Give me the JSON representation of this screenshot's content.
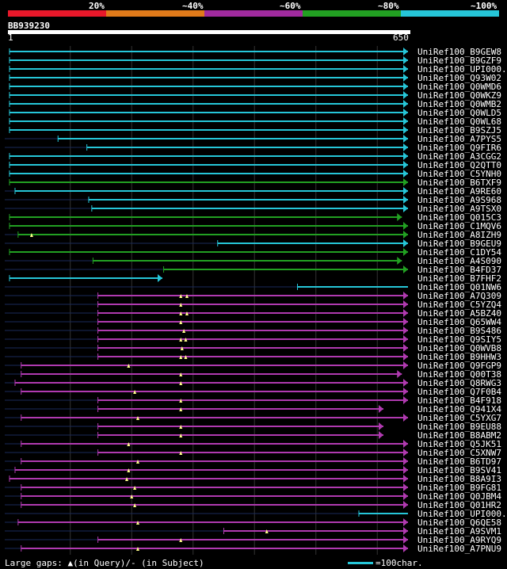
{
  "identity_legend": {
    "labels": [
      "20%",
      "~40%",
      "~60%",
      "~80%",
      "~100%"
    ],
    "colors": [
      "#e8182a",
      "#e07a1a",
      "#a02a9e",
      "#22a022",
      "#26c6d8"
    ]
  },
  "query": {
    "id": "BB939230",
    "start_tick": "1",
    "end_tick": "650",
    "length": 650
  },
  "hits": [
    {
      "label": "UniRef100_B9GEW8",
      "color": "#26c6d8",
      "start": 1,
      "end": 650,
      "arrow": "right",
      "tri": []
    },
    {
      "label": "UniRef100_B9GZF9",
      "color": "#26c6d8",
      "start": 1,
      "end": 650,
      "arrow": "right",
      "tri": []
    },
    {
      "label": "UniRef100_UPI000..",
      "color": "#26c6d8",
      "start": 1,
      "end": 650,
      "arrow": "right",
      "tri": []
    },
    {
      "label": "UniRef100_Q93W02",
      "color": "#26c6d8",
      "start": 1,
      "end": 650,
      "arrow": "right",
      "tri": []
    },
    {
      "label": "UniRef100_Q0WMD6",
      "color": "#26c6d8",
      "start": 1,
      "end": 650,
      "arrow": "right",
      "tri": []
    },
    {
      "label": "UniRef100_Q0WKZ9",
      "color": "#26c6d8",
      "start": 1,
      "end": 650,
      "arrow": "right",
      "tri": []
    },
    {
      "label": "UniRef100_Q0WMB2",
      "color": "#26c6d8",
      "start": 1,
      "end": 650,
      "arrow": "right",
      "tri": []
    },
    {
      "label": "UniRef100_Q0WLD5",
      "color": "#26c6d8",
      "start": 1,
      "end": 650,
      "arrow": "right",
      "tri": []
    },
    {
      "label": "UniRef100_Q0WL68",
      "color": "#26c6d8",
      "start": 1,
      "end": 650,
      "arrow": "right",
      "tri": []
    },
    {
      "label": "UniRef100_B9SZJ5",
      "color": "#26c6d8",
      "start": 1,
      "end": 650,
      "arrow": "right",
      "tri": []
    },
    {
      "label": "UniRef100_A7PYS5",
      "color": "#26c6d8",
      "start": 80,
      "end": 650,
      "arrow": "right",
      "tri": []
    },
    {
      "label": "UniRef100_Q9FIR6",
      "color": "#26c6d8",
      "start": 127,
      "end": 650,
      "arrow": "right",
      "tri": []
    },
    {
      "label": "UniRef100_A3CGG2",
      "color": "#26c6d8",
      "start": 1,
      "end": 650,
      "arrow": "right",
      "tri": []
    },
    {
      "label": "UniRef100_Q2QTT0",
      "color": "#26c6d8",
      "start": 1,
      "end": 650,
      "arrow": "right",
      "tri": []
    },
    {
      "label": "UniRef100_C5YNH0",
      "color": "#26c6d8",
      "start": 1,
      "end": 650,
      "arrow": "right",
      "tri": []
    },
    {
      "label": "UniRef100_B6TXF9",
      "color": "#22a022",
      "start": 1,
      "end": 650,
      "arrow": "right",
      "tri": []
    },
    {
      "label": "UniRef100_A9RE60",
      "color": "#26c6d8",
      "start": 10,
      "end": 650,
      "arrow": "right",
      "tri": []
    },
    {
      "label": "UniRef100_A9S968",
      "color": "#26c6d8",
      "start": 130,
      "end": 650,
      "arrow": "right",
      "tri": []
    },
    {
      "label": "UniRef100_A9TSX0",
      "color": "#26c6d8",
      "start": 135,
      "end": 650,
      "arrow": "right",
      "tri": []
    },
    {
      "label": "UniRef100_Q015C3",
      "color": "#22a022",
      "start": 1,
      "end": 640,
      "arrow": "right",
      "tri": []
    },
    {
      "label": "UniRef100_C1MQV6",
      "color": "#22a022",
      "start": 1,
      "end": 650,
      "arrow": "right",
      "tri": []
    },
    {
      "label": "UniRef100_A8IZH9",
      "color": "#22a022",
      "start": 15,
      "end": 650,
      "arrow": "right",
      "tri": [
        37
      ]
    },
    {
      "label": "UniRef100_B9GEU9",
      "color": "#26c6d8",
      "start": 340,
      "end": 650,
      "arrow": "right",
      "tri": []
    },
    {
      "label": "UniRef100_C1DY54",
      "color": "#22a022",
      "start": 1,
      "end": 650,
      "arrow": "right",
      "tri": []
    },
    {
      "label": "UniRef100_A4S090",
      "color": "#22a022",
      "start": 137,
      "end": 640,
      "arrow": "right",
      "tri": []
    },
    {
      "label": "UniRef100_B4FD37",
      "color": "#22a022",
      "start": 252,
      "end": 650,
      "arrow": "right",
      "tri": []
    },
    {
      "label": "UniRef100_B7FHF2",
      "color": "#26c6d8",
      "start": 1,
      "end": 250,
      "arrow": "right",
      "tri": []
    },
    {
      "label": "UniRef100_Q01NW6",
      "color": "#26c6d8",
      "start": 470,
      "end": 650,
      "arrow": "none",
      "tri": []
    },
    {
      "label": "UniRef100_A7Q309",
      "color": "#b03ab0",
      "start": 145,
      "end": 650,
      "arrow": "right",
      "tri": [
        280,
        290
      ]
    },
    {
      "label": "UniRef100_C5YZQ4",
      "color": "#b03ab0",
      "start": 145,
      "end": 650,
      "arrow": "right",
      "tri": [
        280
      ]
    },
    {
      "label": "UniRef100_A5BZ40",
      "color": "#b03ab0",
      "start": 145,
      "end": 650,
      "arrow": "right",
      "tri": [
        280,
        290
      ]
    },
    {
      "label": "UniRef100_Q65WW4",
      "color": "#b03ab0",
      "start": 145,
      "end": 650,
      "arrow": "right",
      "tri": [
        280
      ]
    },
    {
      "label": "UniRef100_B9S486",
      "color": "#b03ab0",
      "start": 145,
      "end": 650,
      "arrow": "right",
      "tri": [
        285
      ]
    },
    {
      "label": "UniRef100_Q9SIY5",
      "color": "#b03ab0",
      "start": 145,
      "end": 650,
      "arrow": "right",
      "tri": [
        280,
        288
      ]
    },
    {
      "label": "UniRef100_Q0WVB8",
      "color": "#b03ab0",
      "start": 145,
      "end": 650,
      "arrow": "right",
      "tri": [
        282
      ]
    },
    {
      "label": "UniRef100_B9HHW3",
      "color": "#b03ab0",
      "start": 145,
      "end": 650,
      "arrow": "right",
      "tri": [
        280,
        288
      ]
    },
    {
      "label": "UniRef100_Q9FGP9",
      "color": "#b03ab0",
      "start": 20,
      "end": 650,
      "arrow": "right",
      "tri": [
        195
      ]
    },
    {
      "label": "UniRef100_Q00T38",
      "color": "#b03ab0",
      "start": 20,
      "end": 640,
      "arrow": "right",
      "tri": [
        280
      ]
    },
    {
      "label": "UniRef100_Q8RWG3",
      "color": "#b03ab0",
      "start": 10,
      "end": 650,
      "arrow": "right",
      "tri": [
        280
      ]
    },
    {
      "label": "UniRef100_Q7F0B4",
      "color": "#b03ab0",
      "start": 20,
      "end": 650,
      "arrow": "right",
      "tri": [
        205
      ]
    },
    {
      "label": "UniRef100_B4F918",
      "color": "#b03ab0",
      "start": 145,
      "end": 650,
      "arrow": "right",
      "tri": [
        280
      ]
    },
    {
      "label": "UniRef100_Q941X4",
      "color": "#b03ab0",
      "start": 145,
      "end": 610,
      "arrow": "right",
      "tri": [
        280
      ]
    },
    {
      "label": "UniRef100_C5YXG7",
      "color": "#b03ab0",
      "start": 20,
      "end": 650,
      "arrow": "right",
      "tri": [
        210
      ]
    },
    {
      "label": "UniRef100_B9EU88",
      "color": "#b03ab0",
      "start": 145,
      "end": 610,
      "arrow": "right",
      "tri": [
        280
      ]
    },
    {
      "label": "UniRef100_B8ABM2",
      "color": "#b03ab0",
      "start": 145,
      "end": 610,
      "arrow": "right",
      "tri": [
        280
      ]
    },
    {
      "label": "UniRef100_Q5JK51",
      "color": "#b03ab0",
      "start": 20,
      "end": 650,
      "arrow": "right",
      "tri": [
        195
      ]
    },
    {
      "label": "UniRef100_C5XNW7",
      "color": "#b03ab0",
      "start": 145,
      "end": 650,
      "arrow": "right",
      "tri": [
        280
      ]
    },
    {
      "label": "UniRef100_B6TD97",
      "color": "#b03ab0",
      "start": 20,
      "end": 650,
      "arrow": "right",
      "tri": [
        210
      ]
    },
    {
      "label": "UniRef100_B9SV41",
      "color": "#b03ab0",
      "start": 10,
      "end": 650,
      "arrow": "right",
      "tri": [
        195
      ]
    },
    {
      "label": "UniRef100_B8A9I3",
      "color": "#b03ab0",
      "start": 1,
      "end": 650,
      "arrow": "right",
      "tri": [
        192
      ]
    },
    {
      "label": "UniRef100_B9FG81",
      "color": "#b03ab0",
      "start": 20,
      "end": 650,
      "arrow": "right",
      "tri": [
        205
      ]
    },
    {
      "label": "UniRef100_Q0JBM4",
      "color": "#b03ab0",
      "start": 20,
      "end": 650,
      "arrow": "right",
      "tri": [
        200
      ]
    },
    {
      "label": "UniRef100_Q01HR2",
      "color": "#b03ab0",
      "start": 20,
      "end": 650,
      "arrow": "right",
      "tri": [
        205
      ]
    },
    {
      "label": "UniRef100_UPI000..",
      "color": "#26c6d8",
      "start": 570,
      "end": 650,
      "arrow": "none",
      "tri": []
    },
    {
      "label": "UniRef100_Q6QE58",
      "color": "#b03ab0",
      "start": 15,
      "end": 650,
      "arrow": "right",
      "tri": [
        210
      ]
    },
    {
      "label": "UniRef100_A9SVM1",
      "color": "#b03ab0",
      "start": 350,
      "end": 650,
      "arrow": "right",
      "tri": [
        420
      ]
    },
    {
      "label": "UniRef100_A9RYQ9",
      "color": "#b03ab0",
      "start": 145,
      "end": 650,
      "arrow": "right",
      "tri": [
        280
      ]
    },
    {
      "label": "UniRef100_A7PNU9",
      "color": "#b03ab0",
      "start": 20,
      "end": 650,
      "arrow": "right",
      "tri": [
        210
      ]
    }
  ],
  "footer": {
    "large_gaps": "Large gaps: ▲(in Query)/- (in Subject)",
    "scale": "=100char."
  }
}
